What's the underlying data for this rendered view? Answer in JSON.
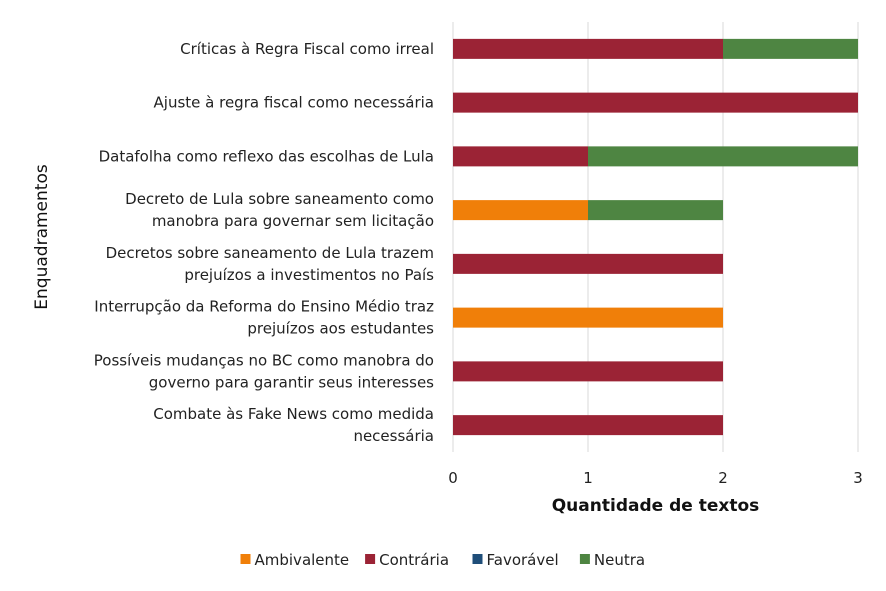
{
  "chart_data": {
    "type": "bar",
    "orientation": "horizontal",
    "stacked": true,
    "categories": [
      [
        "Críticas à Regra Fiscal como irreal"
      ],
      [
        "Ajuste à regra fiscal como necessária"
      ],
      [
        "Datafolha como reflexo das escolhas de Lula"
      ],
      [
        "Decreto de Lula sobre saneamento como",
        "manobra para governar sem licitação"
      ],
      [
        "Decretos sobre saneamento de Lula trazem",
        "prejuízos a investimentos no País"
      ],
      [
        "Interrupção da Reforma do Ensino Médio traz",
        "prejuízos aos estudantes"
      ],
      [
        "Possíveis mudanças no BC como manobra do",
        "governo para garantir seus interesses"
      ],
      [
        "Combate às Fake News como medida",
        "necessária"
      ]
    ],
    "series": [
      {
        "name": "Ambivalente",
        "color": "#F07F09",
        "values": [
          0,
          0,
          0,
          1,
          0,
          2,
          0,
          0
        ]
      },
      {
        "name": "Contrária",
        "color": "#9B2335",
        "values": [
          2,
          3,
          1,
          0,
          2,
          0,
          2,
          2
        ]
      },
      {
        "name": "Favorável",
        "color": "#1F4E79",
        "values": [
          0,
          0,
          0,
          0,
          0,
          0,
          0,
          0
        ]
      },
      {
        "name": "Neutra",
        "color": "#4E8542",
        "values": [
          1,
          0,
          2,
          1,
          0,
          0,
          0,
          0
        ]
      }
    ],
    "xlabel": "Quantidade de textos",
    "ylabel": "Enquadramentos",
    "xlim": [
      0,
      3
    ],
    "xticks": [
      "0",
      "1",
      "2",
      "3"
    ],
    "grid": "vertical",
    "legend_position": "bottom"
  }
}
